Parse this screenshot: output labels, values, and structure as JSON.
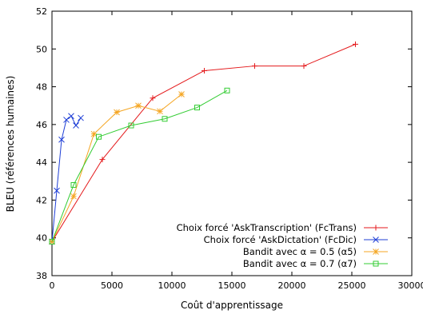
{
  "chart_data": {
    "type": "line",
    "title": "",
    "xlabel": "Coût d'apprentissage",
    "ylabel": "BLEU (références humaines)",
    "xlim": [
      0,
      30000
    ],
    "ylim": [
      38,
      52
    ],
    "xticks": [
      0,
      5000,
      10000,
      15000,
      20000,
      25000,
      30000
    ],
    "yticks": [
      38,
      40,
      42,
      44,
      46,
      48,
      50,
      52
    ],
    "grid": false,
    "legend_position": "bottom-right",
    "series": [
      {
        "name": "Choix forcé 'AskTranscription' (FcTrans)",
        "color": "#e41a1c",
        "marker": "plus",
        "x": [
          0,
          4200,
          8400,
          12700,
          16900,
          21000,
          25300
        ],
        "y": [
          39.8,
          44.15,
          47.4,
          48.85,
          49.1,
          49.1,
          50.25
        ]
      },
      {
        "name": "Choix forcé 'AskDictation' (FcDic)",
        "color": "#1f3fd6",
        "marker": "cross",
        "x": [
          0,
          400,
          800,
          1200,
          1600,
          2000,
          2400
        ],
        "y": [
          39.8,
          42.5,
          45.2,
          46.25,
          46.45,
          45.95,
          46.35
        ]
      },
      {
        "name": "Bandit avec α = 0.5 (α5)",
        "color": "#f5a623",
        "marker": "star",
        "x": [
          0,
          1800,
          3500,
          5400,
          7200,
          9000,
          10800
        ],
        "y": [
          39.8,
          42.2,
          45.5,
          46.65,
          47.0,
          46.7,
          47.6
        ]
      },
      {
        "name": "Bandit avec α = 0.7 (α7)",
        "color": "#33cc33",
        "marker": "square",
        "x": [
          0,
          1800,
          3900,
          6600,
          9400,
          12100,
          14600
        ],
        "y": [
          39.8,
          42.8,
          45.35,
          45.95,
          46.3,
          46.9,
          47.8
        ]
      }
    ]
  }
}
